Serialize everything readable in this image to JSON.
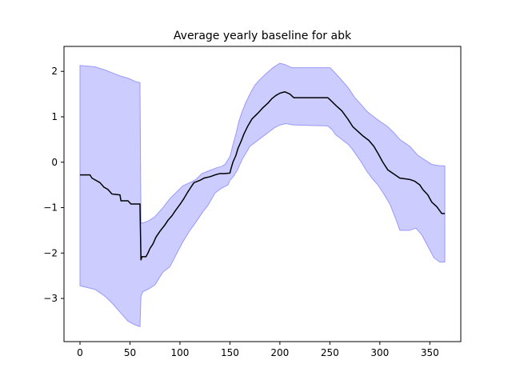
{
  "chart_data": {
    "type": "line",
    "title": "Average yearly baseline for abk",
    "xlabel": "",
    "ylabel": "",
    "xlim": [
      -16,
      381
    ],
    "ylim": [
      -3.95,
      2.55
    ],
    "xticks": [
      0,
      50,
      100,
      150,
      200,
      250,
      300,
      350
    ],
    "yticks": [
      -3,
      -2,
      -1,
      0,
      1,
      2
    ],
    "grid": false,
    "legend": "none",
    "colors": {
      "mean_line": "#000000",
      "band_fill": "#ccccff",
      "band_edge": "#9999ff"
    },
    "series": [
      {
        "role": "mean",
        "points": [
          [
            0,
            -0.28
          ],
          [
            10,
            -0.28
          ],
          [
            12,
            -0.35
          ],
          [
            16,
            -0.4
          ],
          [
            20,
            -0.45
          ],
          [
            24,
            -0.55
          ],
          [
            28,
            -0.6
          ],
          [
            32,
            -0.7
          ],
          [
            40,
            -0.72
          ],
          [
            41,
            -0.85
          ],
          [
            48,
            -0.85
          ],
          [
            51,
            -0.92
          ],
          [
            60,
            -0.92
          ],
          [
            61,
            -2.15
          ],
          [
            62,
            -2.08
          ],
          [
            66,
            -2.08
          ],
          [
            68,
            -2.0
          ],
          [
            70,
            -1.9
          ],
          [
            73,
            -1.8
          ],
          [
            76,
            -1.65
          ],
          [
            80,
            -1.52
          ],
          [
            85,
            -1.38
          ],
          [
            88,
            -1.28
          ],
          [
            92,
            -1.18
          ],
          [
            95,
            -1.08
          ],
          [
            100,
            -0.93
          ],
          [
            104,
            -0.8
          ],
          [
            108,
            -0.65
          ],
          [
            111,
            -0.55
          ],
          [
            114,
            -0.45
          ],
          [
            120,
            -0.4
          ],
          [
            124,
            -0.35
          ],
          [
            130,
            -0.32
          ],
          [
            135,
            -0.28
          ],
          [
            140,
            -0.25
          ],
          [
            144,
            -0.25
          ],
          [
            150,
            -0.24
          ],
          [
            151,
            -0.15
          ],
          [
            153,
            0.0
          ],
          [
            156,
            0.15
          ],
          [
            158,
            0.3
          ],
          [
            161,
            0.45
          ],
          [
            164,
            0.62
          ],
          [
            168,
            0.8
          ],
          [
            172,
            0.95
          ],
          [
            178,
            1.08
          ],
          [
            183,
            1.2
          ],
          [
            188,
            1.3
          ],
          [
            192,
            1.4
          ],
          [
            196,
            1.47
          ],
          [
            200,
            1.52
          ],
          [
            205,
            1.55
          ],
          [
            210,
            1.5
          ],
          [
            214,
            1.42
          ],
          [
            248,
            1.42
          ],
          [
            250,
            1.38
          ],
          [
            256,
            1.25
          ],
          [
            262,
            1.13
          ],
          [
            268,
            0.95
          ],
          [
            273,
            0.78
          ],
          [
            278,
            0.68
          ],
          [
            283,
            0.58
          ],
          [
            289,
            0.48
          ],
          [
            294,
            0.35
          ],
          [
            298,
            0.2
          ],
          [
            303,
            0.0
          ],
          [
            308,
            -0.17
          ],
          [
            314,
            -0.26
          ],
          [
            320,
            -0.35
          ],
          [
            330,
            -0.38
          ],
          [
            335,
            -0.42
          ],
          [
            340,
            -0.5
          ],
          [
            343,
            -0.6
          ],
          [
            348,
            -0.72
          ],
          [
            352,
            -0.88
          ],
          [
            357,
            -0.98
          ],
          [
            362,
            -1.13
          ],
          [
            365,
            -1.13
          ]
        ]
      },
      {
        "role": "upper_bound",
        "points": [
          [
            0,
            2.13
          ],
          [
            15,
            2.1
          ],
          [
            25,
            2.03
          ],
          [
            32,
            1.97
          ],
          [
            40,
            1.9
          ],
          [
            48,
            1.85
          ],
          [
            55,
            1.78
          ],
          [
            60,
            1.75
          ],
          [
            61,
            -1.35
          ],
          [
            68,
            -1.3
          ],
          [
            75,
            -1.2
          ],
          [
            83,
            -1.0
          ],
          [
            90,
            -0.8
          ],
          [
            97,
            -0.65
          ],
          [
            103,
            -0.52
          ],
          [
            110,
            -0.45
          ],
          [
            116,
            -0.38
          ],
          [
            122,
            -0.25
          ],
          [
            130,
            -0.18
          ],
          [
            137,
            -0.12
          ],
          [
            141,
            -0.1
          ],
          [
            145,
            -0.05
          ],
          [
            150,
            0.12
          ],
          [
            153,
            0.38
          ],
          [
            156,
            0.62
          ],
          [
            159,
            0.9
          ],
          [
            162,
            1.1
          ],
          [
            166,
            1.32
          ],
          [
            170,
            1.5
          ],
          [
            175,
            1.7
          ],
          [
            180,
            1.82
          ],
          [
            186,
            1.95
          ],
          [
            193,
            2.08
          ],
          [
            200,
            2.18
          ],
          [
            205,
            2.15
          ],
          [
            212,
            2.08
          ],
          [
            223,
            2.08
          ],
          [
            250,
            2.08
          ],
          [
            253,
            2.02
          ],
          [
            260,
            1.85
          ],
          [
            268,
            1.65
          ],
          [
            275,
            1.42
          ],
          [
            282,
            1.25
          ],
          [
            288,
            1.1
          ],
          [
            294,
            1.0
          ],
          [
            300,
            0.9
          ],
          [
            307,
            0.8
          ],
          [
            314,
            0.65
          ],
          [
            320,
            0.5
          ],
          [
            330,
            0.35
          ],
          [
            338,
            0.15
          ],
          [
            345,
            0.05
          ],
          [
            352,
            -0.05
          ],
          [
            360,
            -0.08
          ],
          [
            365,
            -0.08
          ]
        ]
      },
      {
        "role": "lower_bound",
        "points": [
          [
            0,
            -2.72
          ],
          [
            15,
            -2.8
          ],
          [
            25,
            -2.95
          ],
          [
            32,
            -3.1
          ],
          [
            40,
            -3.3
          ],
          [
            48,
            -3.5
          ],
          [
            55,
            -3.58
          ],
          [
            60,
            -3.62
          ],
          [
            61,
            -2.95
          ],
          [
            63,
            -2.85
          ],
          [
            68,
            -2.8
          ],
          [
            75,
            -2.7
          ],
          [
            83,
            -2.42
          ],
          [
            90,
            -2.3
          ],
          [
            97,
            -2.0
          ],
          [
            103,
            -1.75
          ],
          [
            110,
            -1.5
          ],
          [
            116,
            -1.32
          ],
          [
            122,
            -1.12
          ],
          [
            128,
            -0.95
          ],
          [
            135,
            -0.68
          ],
          [
            141,
            -0.58
          ],
          [
            148,
            -0.5
          ],
          [
            150,
            -0.4
          ],
          [
            154,
            -0.3
          ],
          [
            158,
            -0.15
          ],
          [
            162,
            0.05
          ],
          [
            166,
            0.2
          ],
          [
            170,
            0.35
          ],
          [
            176,
            0.45
          ],
          [
            182,
            0.55
          ],
          [
            188,
            0.65
          ],
          [
            194,
            0.75
          ],
          [
            200,
            0.82
          ],
          [
            206,
            0.85
          ],
          [
            214,
            0.82
          ],
          [
            248,
            0.8
          ],
          [
            252,
            0.72
          ],
          [
            256,
            0.6
          ],
          [
            262,
            0.5
          ],
          [
            268,
            0.4
          ],
          [
            272,
            0.3
          ],
          [
            280,
            0.05
          ],
          [
            287,
            -0.2
          ],
          [
            292,
            -0.35
          ],
          [
            298,
            -0.5
          ],
          [
            304,
            -0.7
          ],
          [
            310,
            -0.92
          ],
          [
            316,
            -1.25
          ],
          [
            320,
            -1.5
          ],
          [
            330,
            -1.5
          ],
          [
            336,
            -1.45
          ],
          [
            342,
            -1.6
          ],
          [
            348,
            -1.85
          ],
          [
            354,
            -2.1
          ],
          [
            360,
            -2.2
          ],
          [
            365,
            -2.2
          ]
        ]
      }
    ]
  }
}
